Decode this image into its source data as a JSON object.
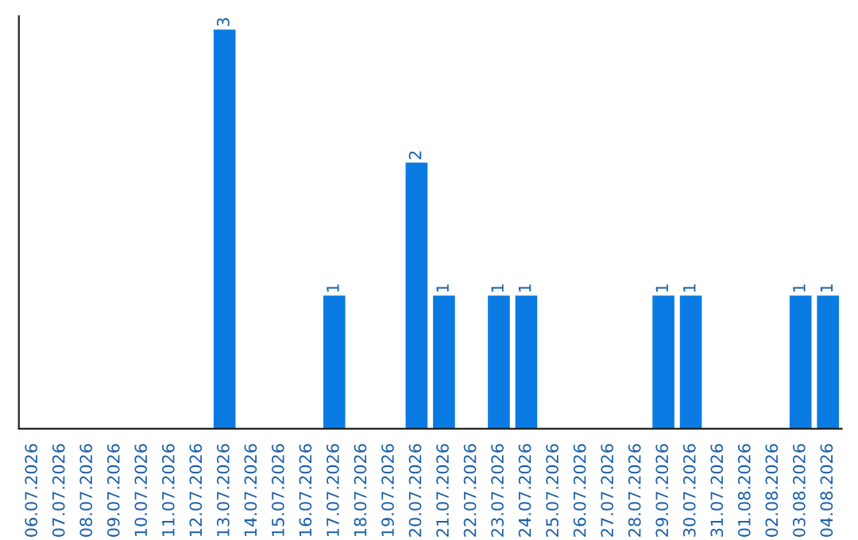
{
  "chart_data": {
    "type": "bar",
    "categories": [
      "06.07.2026",
      "07.07.2026",
      "08.07.2026",
      "09.07.2026",
      "10.07.2026",
      "11.07.2026",
      "12.07.2026",
      "13.07.2026",
      "14.07.2026",
      "15.07.2026",
      "16.07.2026",
      "17.07.2026",
      "18.07.2026",
      "19.07.2026",
      "20.07.2026",
      "21.07.2026",
      "22.07.2026",
      "23.07.2026",
      "24.07.2026",
      "25.07.2026",
      "26.07.2026",
      "27.07.2026",
      "28.07.2026",
      "29.07.2026",
      "30.07.2026",
      "31.07.2026",
      "01.08.2026",
      "02.08.2026",
      "03.08.2026",
      "04.08.2026"
    ],
    "values": [
      0,
      0,
      0,
      0,
      0,
      0,
      0,
      3,
      0,
      0,
      0,
      1,
      0,
      0,
      2,
      1,
      0,
      1,
      1,
      0,
      0,
      0,
      0,
      1,
      1,
      0,
      0,
      0,
      1,
      1
    ],
    "value_labels": [
      null,
      null,
      null,
      null,
      null,
      null,
      null,
      "3",
      null,
      null,
      null,
      "1",
      null,
      null,
      "2",
      "1",
      null,
      "1",
      "1",
      null,
      null,
      null,
      null,
      "1",
      "1",
      null,
      null,
      null,
      "1",
      "1"
    ],
    "color": "#0a7be3",
    "ylim": [
      0,
      3.1
    ],
    "tick_labels": "x",
    "grid": false,
    "legend": false
  }
}
